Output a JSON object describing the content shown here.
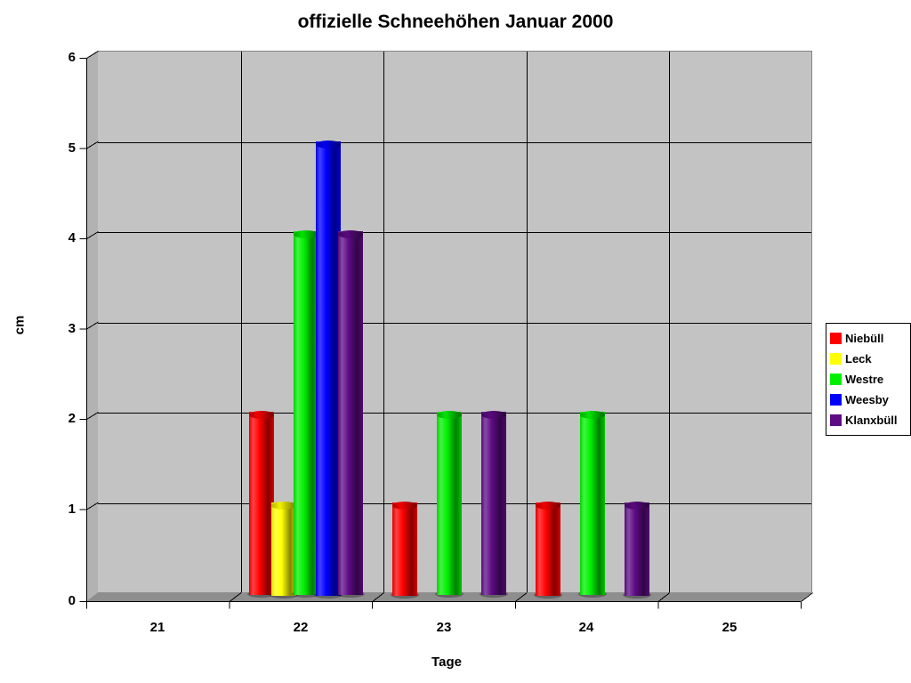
{
  "title": "offizielle Schneehöhen Januar 2000",
  "chart_data": {
    "type": "bar",
    "style": "3d-cylinder-bars",
    "title": "offizielle Schneehöhen Januar 2000",
    "xlabel": "Tage",
    "ylabel": "cm",
    "categories": [
      "21",
      "22",
      "23",
      "24",
      "25"
    ],
    "series": [
      {
        "name": "Niebüll",
        "color": "#ff0000",
        "values": [
          0,
          2,
          1,
          1,
          0
        ]
      },
      {
        "name": "Leck",
        "color": "#ffff00",
        "values": [
          0,
          1,
          0,
          0,
          0
        ]
      },
      {
        "name": "Westre",
        "color": "#00f000",
        "values": [
          0,
          4,
          2,
          2,
          0
        ]
      },
      {
        "name": "Weesby",
        "color": "#0000ff",
        "values": [
          0,
          5,
          0,
          0,
          0
        ]
      },
      {
        "name": "Klanxbüll",
        "color": "#5e0b85",
        "values": [
          0,
          4,
          2,
          1,
          0
        ]
      }
    ],
    "ylim": [
      0,
      6
    ],
    "yticks": [
      0,
      1,
      2,
      3,
      4,
      5,
      6
    ],
    "grid": true,
    "legend_position": "right",
    "plot_bg_color": "#c3c3c3",
    "wall_color": "#b2b2b2",
    "floor_color": "#8e8e8e",
    "gridline_color": "#000000",
    "page_bg_color": "#ffffff"
  }
}
